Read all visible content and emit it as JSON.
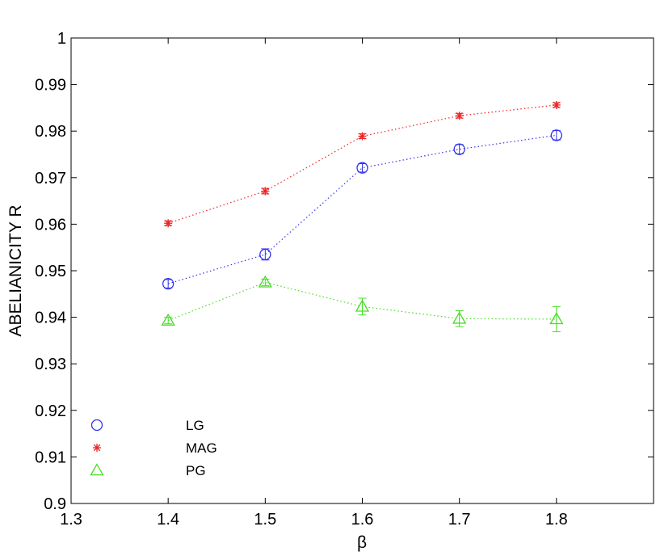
{
  "chart_data": {
    "type": "line",
    "title": "",
    "xlabel": "β",
    "ylabel": "ABELIANICITY R",
    "xlim": [
      1.3,
      1.9
    ],
    "ylim": [
      0.9,
      1.0
    ],
    "xticks": [
      1.3,
      1.4,
      1.5,
      1.6,
      1.7,
      1.8
    ],
    "xtick_labels": [
      "1.3",
      "1.4",
      "1.5",
      "1.6",
      "1.7",
      "1.8"
    ],
    "yticks": [
      0.9,
      0.91,
      0.92,
      0.93,
      0.94,
      0.95,
      0.96,
      0.97,
      0.98,
      0.99,
      1.0
    ],
    "ytick_labels": [
      "0.9",
      "0.91",
      "0.92",
      "0.93",
      "0.94",
      "0.95",
      "0.96",
      "0.97",
      "0.98",
      "0.99",
      "1"
    ],
    "grid": false,
    "legend_position": "bottom-left",
    "series": [
      {
        "name": "LG",
        "marker": "circle",
        "color": "#3333ee",
        "x": [
          1.4,
          1.5,
          1.6,
          1.7,
          1.8
        ],
        "y": [
          0.9472,
          0.9535,
          0.9721,
          0.9761,
          0.9791
        ],
        "err": [
          0.0009,
          0.0012,
          0.0009,
          0.001,
          0.001
        ]
      },
      {
        "name": "MAG",
        "marker": "star",
        "color": "#ee2222",
        "x": [
          1.4,
          1.5,
          1.6,
          1.7,
          1.8
        ],
        "y": [
          0.9602,
          0.9671,
          0.9789,
          0.9833,
          0.9856
        ],
        "err": [
          0.0005,
          0.0006,
          0.0005,
          0.0005,
          0.0005
        ]
      },
      {
        "name": "PG",
        "marker": "triangle",
        "color": "#44dd22",
        "x": [
          1.4,
          1.5,
          1.6,
          1.7,
          1.8
        ],
        "y": [
          0.9393,
          0.9475,
          0.9423,
          0.9397,
          0.9396
        ],
        "err": [
          0.0007,
          0.0007,
          0.0018,
          0.0017,
          0.0027
        ]
      }
    ]
  }
}
